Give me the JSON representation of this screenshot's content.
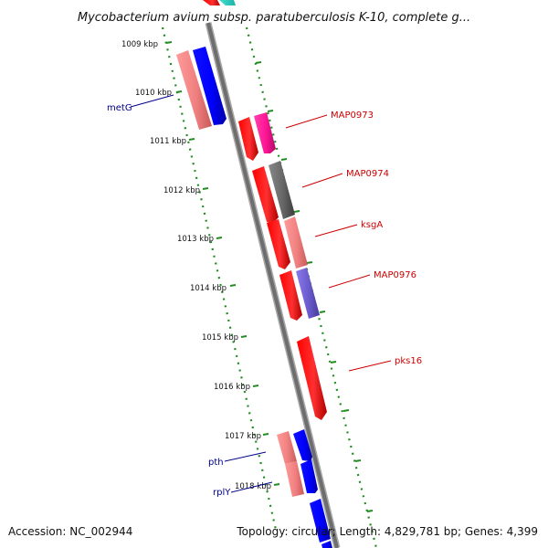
{
  "title": "Mycobacterium avium subsp. paratuberculosis K-10, complete g...",
  "footer": {
    "accession": "Accession: NC_002944",
    "info": "Topology: circular; Length: 4,829,781 bp; Genes: 4,399"
  },
  "ticks": [
    "1009 kbp",
    "1010 kbp",
    "1011 kbp",
    "1012 kbp",
    "1013 kbp",
    "1014 kbp",
    "1015 kbp",
    "1016 kbp",
    "1017 kbp",
    "1018 kbp"
  ],
  "gene_labels": [
    {
      "name": "metG",
      "color": "#00008b"
    },
    {
      "name": "MAP0973",
      "color": "#cc0000"
    },
    {
      "name": "MAP0974",
      "color": "#cc0000"
    },
    {
      "name": "ksgA",
      "color": "#cc0000"
    },
    {
      "name": "MAP0976",
      "color": "#cc0000"
    },
    {
      "name": "pks16",
      "color": "#cc0000"
    },
    {
      "name": "pth",
      "color": "#00008b"
    },
    {
      "name": "rplY",
      "color": "#00008b"
    }
  ],
  "colors": {
    "red": "#ff0000",
    "pink": "#f08080",
    "blue": "#0000ff",
    "magenta": "#ff1493",
    "gray": "#666666",
    "slate": "#6a5acd",
    "cyan": "#20b2aa",
    "backbone": "#7f7f7f",
    "dots": "#228b22"
  }
}
